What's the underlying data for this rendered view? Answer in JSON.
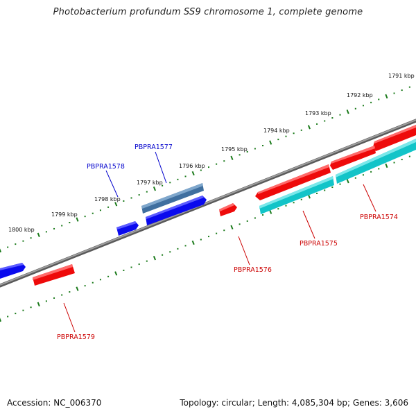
{
  "title": "Photobacterium profundum SS9 chromosome 1, complete genome",
  "footer": {
    "accession": "Accession: NC_006370",
    "summary": "Topology: circular; Length: 4,085,304 bp; Genes: 3,606"
  },
  "colors": {
    "backbone": "#7a7a7a",
    "tick_dot": "#1a7a1a",
    "tick_major": "#1a7a1a",
    "forward_gene": "#0a0aee",
    "reverse_gene": "#ee0a0a",
    "highlight_gene": "#4a7fb0",
    "cyan_gene": "#12c4c8",
    "label_forward": "#0000cc",
    "label_reverse": "#cc0000"
  },
  "kbp_labels": [
    "1791 kbp",
    "1792 kbp",
    "1793 kbp",
    "1794 kbp",
    "1795 kbp",
    "1796 kbp",
    "1797 kbp",
    "1798 kbp",
    "1799 kbp",
    "1800 kbp"
  ],
  "gene_labels": {
    "forward": [
      "PBPRA1577",
      "PBPRA1578"
    ],
    "reverse": [
      "PBPRA1574",
      "PBPRA1575",
      "PBPRA1576",
      "PBPRA1579"
    ]
  }
}
